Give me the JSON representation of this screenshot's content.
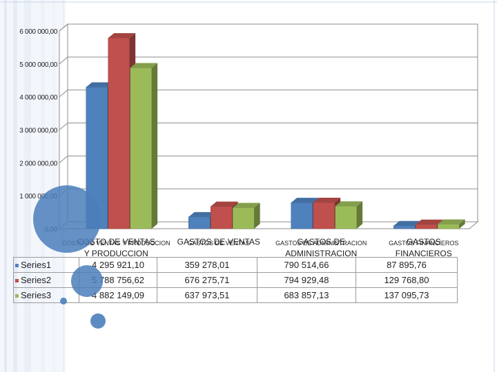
{
  "colors": {
    "series1": "#4f81bd",
    "series2": "#c0504d",
    "series3": "#9bbb59",
    "deco_blue": "#4a7ebb",
    "stripe": "#e8eef8"
  },
  "chart_data": {
    "type": "bar",
    "style": "3d-clustered-column",
    "categories": [
      "COSTO DE VENTAS Y PRODUCCION",
      "GASTOS DE VENTAS",
      "GASTOS DE ADMINISTRACION",
      "GASTOS FINANCIEROS"
    ],
    "series": [
      {
        "name": "Series1",
        "values": [
          4295921.1,
          359278.01,
          790514.66,
          87895.76
        ],
        "display": [
          "4 295 921,10",
          "359 278,01",
          "790 514,66",
          "87 895,76"
        ]
      },
      {
        "name": "Series2",
        "values": [
          5788756.62,
          676275.71,
          794929.48,
          129768.8
        ],
        "display": [
          "5 788 756,62",
          "676 275,71",
          "794 929,48",
          "129 768,80"
        ]
      },
      {
        "name": "Series3",
        "values": [
          4882149.09,
          637973.51,
          683857.13,
          137095.73
        ],
        "display": [
          "4 882 149,09",
          "637 973,51",
          "683 857,13",
          "137 095,73"
        ]
      }
    ],
    "ylim": [
      0,
      6000000
    ],
    "yticks": [
      0,
      1000000,
      2000000,
      3000000,
      4000000,
      5000000,
      6000000
    ],
    "ytick_labels": [
      "0,00",
      "1 000 000,00",
      "2 000 000,00",
      "3 000 000,00",
      "4 000 000,00",
      "5 000 000,00",
      "6 000 000,00"
    ],
    "grid": true,
    "legend": "data-table",
    "title": "",
    "xlabel": "",
    "ylabel": ""
  }
}
